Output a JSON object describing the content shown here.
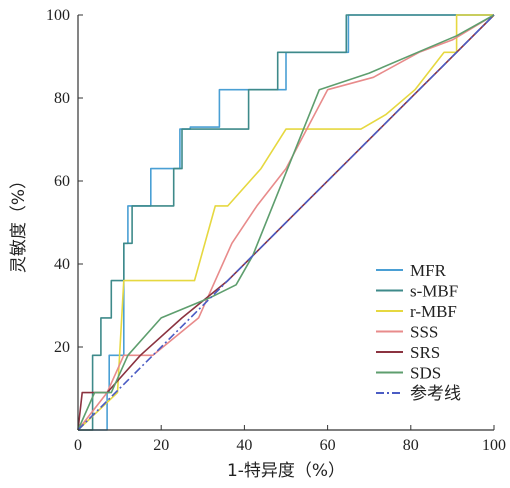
{
  "chart_data": {
    "type": "line",
    "xlabel": "1-特异度（%）",
    "ylabel": "灵敏度（%）",
    "xlim": [
      0,
      100
    ],
    "ylim": [
      0,
      100
    ],
    "x_ticks": [
      "0",
      "20",
      "40",
      "60",
      "80",
      "100"
    ],
    "y_ticks": [
      "20",
      "40",
      "60",
      "80",
      "100"
    ],
    "grid": false,
    "legend_position": "bottom-right",
    "series": [
      {
        "name": "MFR",
        "color": "#4a9fd4",
        "dash": "",
        "x": [
          0,
          7,
          7,
          7.5,
          7.5,
          11,
          11,
          12,
          12,
          17.5,
          17.5,
          24.5,
          24.5,
          27,
          27,
          34,
          34,
          42.5,
          42.5,
          50,
          50,
          65,
          65,
          67,
          67,
          100
        ],
        "y": [
          0,
          0,
          9,
          9,
          18,
          18,
          45,
          45,
          54,
          54,
          63,
          63,
          72.5,
          72.5,
          73,
          73,
          82,
          82,
          82,
          82,
          91,
          91,
          100,
          100,
          100,
          100
        ]
      },
      {
        "name": "s-MBF",
        "color": "#3e8a8a",
        "dash": "",
        "x": [
          0,
          3.5,
          3.5,
          5.5,
          5.5,
          6.5,
          6.5,
          8,
          8,
          11,
          11,
          13,
          13,
          23,
          23,
          25,
          25,
          26.5,
          26.5,
          41,
          41,
          44,
          44,
          48,
          48,
          51,
          51,
          64.5,
          64.5,
          100
        ],
        "y": [
          0,
          0,
          18,
          18,
          27,
          27,
          27,
          27,
          36,
          36,
          45,
          45,
          54,
          54,
          63,
          63,
          72.5,
          72.5,
          72.5,
          72.5,
          82,
          82,
          82,
          82,
          91,
          91,
          91,
          91,
          100,
          100
        ]
      },
      {
        "name": "r-MBF",
        "color": "#e6d840",
        "dash": "",
        "x": [
          0,
          9.5,
          11,
          28,
          33,
          36,
          44,
          50,
          68,
          74,
          81,
          88,
          90,
          91,
          91,
          100
        ],
        "y": [
          0,
          9,
          36,
          36,
          54,
          54,
          63,
          72.5,
          72.5,
          76,
          82,
          91,
          91,
          91,
          100,
          100
        ]
      },
      {
        "name": "SSS",
        "color": "#e88b8b",
        "dash": "",
        "x": [
          0,
          7,
          11,
          18,
          29,
          37,
          43,
          50,
          60,
          71,
          82,
          90,
          100
        ],
        "y": [
          0,
          9,
          18,
          18,
          27,
          45,
          54,
          63,
          82,
          85,
          91,
          94,
          100
        ]
      },
      {
        "name": "SRS",
        "color": "#8b3340",
        "dash": "",
        "x": [
          0,
          1,
          3,
          7,
          15,
          25,
          36,
          45,
          55,
          66,
          77,
          88,
          100
        ],
        "y": [
          0,
          9,
          9,
          9,
          18,
          27,
          36,
          45,
          55,
          66,
          77,
          88,
          100
        ]
      },
      {
        "name": "SDS",
        "color": "#5e9e6e",
        "dash": "",
        "x": [
          0,
          4,
          8,
          12,
          20,
          32,
          38,
          42,
          58,
          70,
          84,
          91,
          100
        ],
        "y": [
          0,
          9,
          9,
          18,
          27,
          32,
          35,
          42,
          82,
          86,
          92,
          95,
          100
        ]
      },
      {
        "name": "参考线",
        "color": "#4b5cc4",
        "dash": "8 3 2 3",
        "x": [
          0,
          100
        ],
        "y": [
          0,
          100
        ]
      }
    ]
  }
}
